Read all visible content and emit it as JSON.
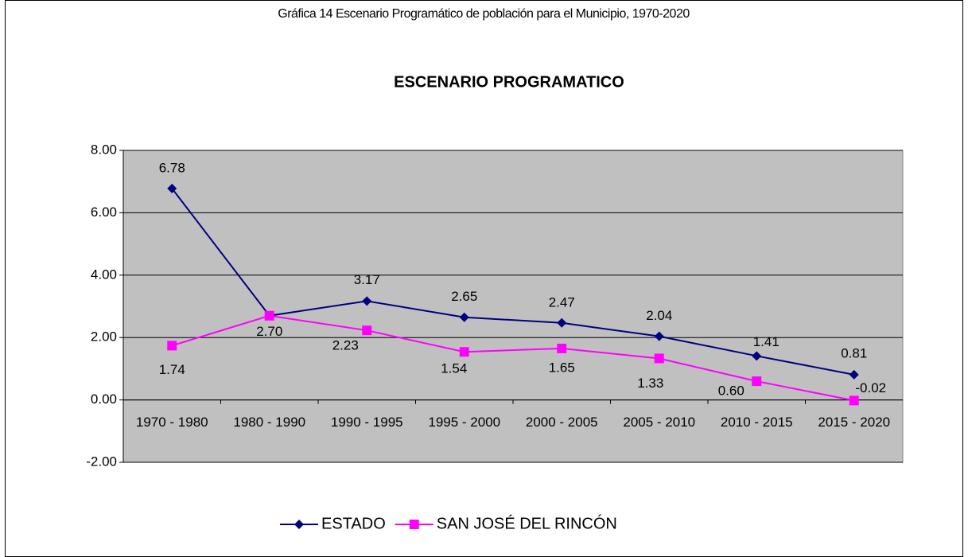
{
  "chart_data": {
    "type": "line",
    "caption": "Gráfica 14 Escenario Programático de población para el Municipio, 1970-2020",
    "title": "ESCENARIO PROGRAMATICO",
    "categories": [
      "1970 - 1980",
      "1980 - 1990",
      "1990 - 1995",
      "1995 - 2000",
      "2000 - 2005",
      "2005 - 2010",
      "2010 - 2015",
      "2015 - 2020"
    ],
    "series": [
      {
        "name": "ESTADO",
        "color": "#000080",
        "marker": "diamond",
        "values": [
          6.78,
          2.7,
          3.17,
          2.65,
          2.47,
          2.04,
          1.41,
          0.81
        ],
        "value_labels": [
          "6.78",
          "2.70",
          "3.17",
          "2.65",
          "2.47",
          "2.04",
          "1.41",
          "0.81"
        ]
      },
      {
        "name": "SAN JOSÉ DEL RINCÓN",
        "color": "#ff00ff",
        "marker": "square",
        "values": [
          1.74,
          2.7,
          2.23,
          1.54,
          1.65,
          1.33,
          0.6,
          -0.02
        ],
        "value_labels": [
          "1.74",
          null,
          "2.23",
          "1.54",
          "1.65",
          "1.33",
          "0.60",
          "-0.02"
        ]
      }
    ],
    "ylim": [
      -2,
      8
    ],
    "yticks": [
      {
        "value": -2,
        "label": "-2.00"
      },
      {
        "value": 0,
        "label": "0.00"
      },
      {
        "value": 2,
        "label": "2.00"
      },
      {
        "value": 4,
        "label": "4.00"
      },
      {
        "value": 6,
        "label": "6.00"
      },
      {
        "value": 8,
        "label": "8.00"
      }
    ],
    "grid": true,
    "legend": "bottom"
  }
}
